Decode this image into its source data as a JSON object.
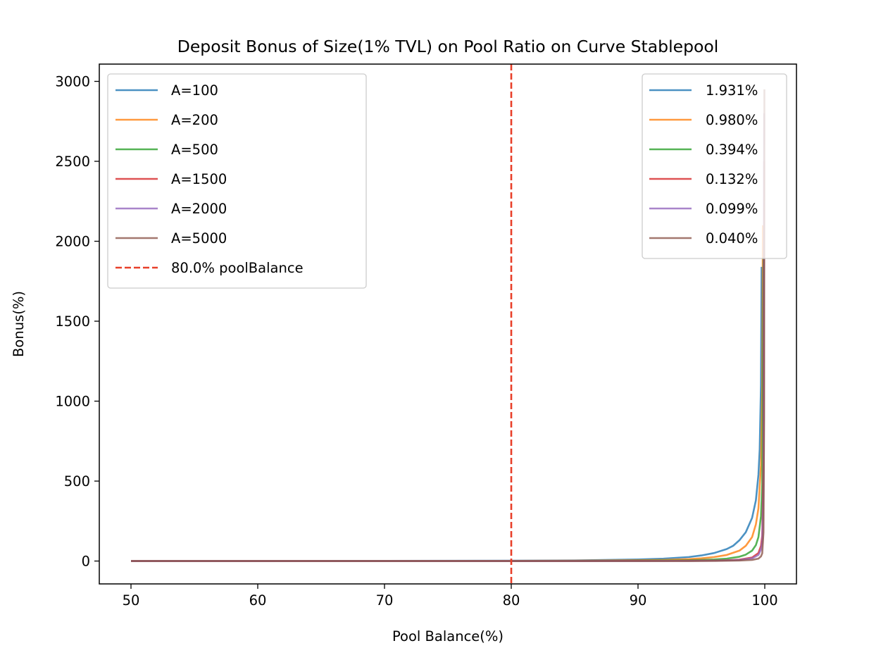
{
  "chart_data": {
    "type": "line",
    "title": "Deposit Bonus of Size(1% TVL) on Pool Ratio on Curve Stablepool",
    "xlabel": "Pool Balance(%)",
    "ylabel": "Bonus(%)",
    "xlim": [
      47.5,
      102.5
    ],
    "ylim": [
      -143,
      3108
    ],
    "x_ticks": [
      50,
      60,
      70,
      80,
      90,
      100
    ],
    "y_ticks": [
      0,
      500,
      1000,
      1500,
      2000,
      2500,
      3000
    ],
    "grid": false,
    "series": [
      {
        "name": "A=100",
        "color": "#1f77b4",
        "x": [
          50,
          60,
          70,
          80,
          85,
          90,
          92,
          94,
          95,
          96,
          97,
          97.5,
          98,
          98.5,
          99,
          99.3,
          99.5,
          99.6,
          99.7,
          99.75
        ],
        "y": [
          0,
          0,
          1,
          2,
          4,
          10,
          15,
          25,
          35,
          50,
          75,
          95,
          130,
          180,
          270,
          380,
          540,
          700,
          1100,
          1840
        ]
      },
      {
        "name": "A=200",
        "color": "#ff7f0e",
        "x": [
          50,
          60,
          70,
          80,
          85,
          90,
          92,
          94,
          95,
          96,
          97,
          98,
          98.5,
          99,
          99.3,
          99.5,
          99.7,
          99.8,
          99.85
        ],
        "y": [
          0,
          0,
          0,
          1,
          2,
          5,
          7,
          12,
          17,
          25,
          38,
          65,
          95,
          150,
          230,
          330,
          600,
          1100,
          2100
        ]
      },
      {
        "name": "A=500",
        "color": "#2ca02c",
        "x": [
          50,
          60,
          70,
          80,
          85,
          90,
          92,
          94,
          95,
          96,
          97,
          98,
          98.5,
          99,
          99.3,
          99.5,
          99.7,
          99.8,
          99.9
        ],
        "y": [
          0,
          0,
          0,
          0,
          1,
          2,
          3,
          5,
          7,
          10,
          15,
          27,
          40,
          65,
          100,
          150,
          280,
          480,
          1900
        ]
      },
      {
        "name": "A=1500",
        "color": "#d62728",
        "x": [
          50,
          60,
          70,
          80,
          85,
          90,
          92,
          94,
          96,
          97,
          98,
          99,
          99.5,
          99.7,
          99.8,
          99.9,
          99.95
        ],
        "y": [
          0,
          0,
          0,
          0,
          0,
          1,
          1,
          2,
          3,
          5,
          9,
          22,
          50,
          95,
          160,
          600,
          2500
        ]
      },
      {
        "name": "A=2000",
        "color": "#9467bd",
        "x": [
          50,
          60,
          70,
          80,
          85,
          90,
          92,
          94,
          96,
          97,
          98,
          99,
          99.5,
          99.7,
          99.8,
          99.9,
          99.95
        ],
        "y": [
          0,
          0,
          0,
          0,
          0,
          0,
          1,
          1,
          2,
          4,
          7,
          17,
          38,
          72,
          120,
          450,
          2800
        ]
      },
      {
        "name": "A=5000",
        "color": "#8c564b",
        "x": [
          50,
          60,
          70,
          80,
          85,
          90,
          92,
          94,
          96,
          97,
          98,
          99,
          99.5,
          99.7,
          99.8,
          99.9,
          99.95,
          99.97
        ],
        "y": [
          0,
          0,
          0,
          0,
          0,
          0,
          0,
          0,
          1,
          2,
          3,
          7,
          15,
          29,
          48,
          180,
          900,
          2950
        ]
      }
    ],
    "vline": {
      "x": 80,
      "label": "80.0% poolBalance",
      "color": "#e8402a",
      "style": "dashed"
    },
    "legend_left": {
      "placement": "upper left",
      "entries": [
        "A=100",
        "A=200",
        "A=500",
        "A=1500",
        "A=2000",
        "A=5000",
        "80.0% poolBalance"
      ]
    },
    "legend_right": {
      "placement": "upper right",
      "entries": [
        "1.931%",
        "0.980%",
        "0.394%",
        "0.132%",
        "0.099%",
        "0.040%"
      ]
    }
  }
}
